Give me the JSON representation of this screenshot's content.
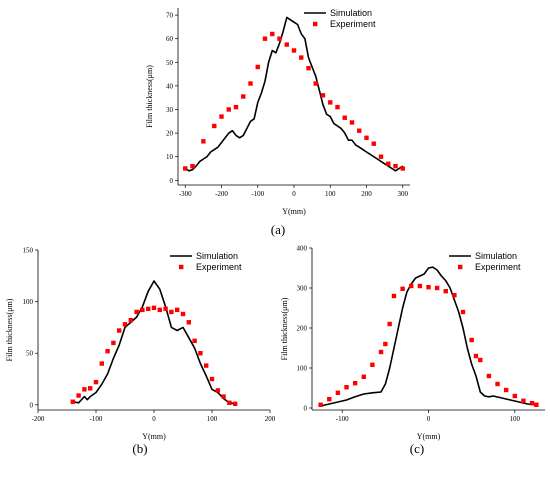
{
  "chart_data": [
    {
      "id": "a",
      "type": "line",
      "caption": "(a)",
      "xlabel": "Y(mm)",
      "ylabel": "Film thickness(μm)",
      "xlim": [
        -320,
        320
      ],
      "ylim": [
        -2,
        73
      ],
      "xticks": [
        -300,
        -200,
        -100,
        0,
        100,
        200,
        300
      ],
      "yticks": [
        0,
        10,
        20,
        30,
        40,
        50,
        60,
        70
      ],
      "legend_position": "top-right",
      "series": [
        {
          "name": "Simulation",
          "kind": "line",
          "color": "#000000",
          "x": [
            -300,
            -290,
            -280,
            -270,
            -260,
            -250,
            -240,
            -230,
            -220,
            -210,
            -200,
            -190,
            -180,
            -170,
            -160,
            -150,
            -140,
            -130,
            -120,
            -110,
            -100,
            -90,
            -80,
            -70,
            -60,
            -50,
            -40,
            -30,
            -20,
            -10,
            0,
            10,
            20,
            30,
            40,
            50,
            60,
            70,
            80,
            90,
            100,
            110,
            120,
            130,
            140,
            150,
            160,
            170,
            180,
            190,
            200,
            210,
            220,
            230,
            240,
            250,
            260,
            270,
            280,
            290,
            300
          ],
          "y": [
            5,
            4,
            4.5,
            6,
            8,
            9,
            10,
            12,
            13,
            14,
            16,
            18,
            20,
            21,
            19,
            18,
            19,
            22,
            25,
            26,
            33,
            37,
            42,
            50,
            55,
            54,
            58,
            63,
            69,
            68,
            67,
            66,
            62,
            60,
            52,
            48,
            44,
            38,
            32,
            28,
            27,
            24,
            23,
            22,
            20,
            17,
            17,
            15,
            14,
            13,
            12,
            11,
            10,
            9,
            8,
            7,
            6,
            5,
            4,
            5,
            6
          ]
        },
        {
          "name": "Experiment",
          "kind": "scatter",
          "color": "#ff0000",
          "x": [
            -300,
            -280,
            -250,
            -220,
            -200,
            -180,
            -160,
            -140,
            -120,
            -100,
            -80,
            -60,
            -40,
            -20,
            0,
            20,
            40,
            60,
            80,
            100,
            120,
            140,
            160,
            180,
            200,
            220,
            240,
            260,
            280,
            300
          ],
          "y": [
            5,
            6,
            16.5,
            23,
            27,
            30,
            31,
            35.5,
            41,
            48,
            60,
            62,
            60,
            57.5,
            55,
            52,
            47.5,
            41,
            36,
            33,
            31,
            26.5,
            24.5,
            21,
            18,
            15.5,
            10,
            7,
            6,
            5
          ]
        }
      ]
    },
    {
      "id": "b",
      "type": "line",
      "caption": "(b)",
      "xlabel": "Y(mm)",
      "ylabel": "Film thickness(μm)",
      "xlim": [
        -200,
        200
      ],
      "ylim": [
        -5,
        150
      ],
      "xticks": [
        -200,
        -100,
        0,
        100,
        200
      ],
      "yticks": [
        0,
        50,
        100,
        150
      ],
      "legend_position": "top-right",
      "series": [
        {
          "name": "Simulation",
          "kind": "line",
          "color": "#000000",
          "x": [
            -140,
            -130,
            -120,
            -115,
            -110,
            -100,
            -90,
            -80,
            -70,
            -60,
            -50,
            -40,
            -30,
            -20,
            -10,
            0,
            10,
            20,
            30,
            40,
            50,
            60,
            70,
            80,
            90,
            100,
            110,
            120,
            130,
            140
          ],
          "y": [
            3,
            2,
            8,
            5,
            8,
            12,
            20,
            30,
            45,
            58,
            75,
            80,
            85,
            95,
            110,
            120,
            112,
            95,
            75,
            72,
            75,
            65,
            55,
            40,
            28,
            15,
            12,
            6,
            2,
            1
          ]
        },
        {
          "name": "Experiment",
          "kind": "scatter",
          "color": "#ff0000",
          "x": [
            -140,
            -130,
            -120,
            -110,
            -100,
            -90,
            -80,
            -70,
            -60,
            -50,
            -40,
            -30,
            -20,
            -10,
            0,
            10,
            20,
            30,
            40,
            50,
            60,
            70,
            80,
            90,
            100,
            110,
            120,
            130,
            140
          ],
          "y": [
            3,
            9,
            15,
            16,
            22,
            40,
            52,
            60,
            72,
            78,
            82,
            90,
            92,
            93,
            94,
            92,
            93,
            90,
            92,
            88,
            80,
            62,
            50,
            38,
            25,
            14,
            8,
            2,
            1
          ]
        }
      ]
    },
    {
      "id": "c",
      "type": "line",
      "caption": "(c)",
      "xlabel": "Y(mm)",
      "ylabel": "Film thickness(μm)",
      "xlim": [
        -135,
        135
      ],
      "ylim": [
        -5,
        400
      ],
      "xticks": [
        -100,
        0,
        100
      ],
      "yticks": [
        0,
        100,
        200,
        300,
        400
      ],
      "legend_position": "top-right",
      "series": [
        {
          "name": "Simulation",
          "kind": "line",
          "color": "#000000",
          "x": [
            -125,
            -115,
            -105,
            -95,
            -85,
            -75,
            -65,
            -55,
            -50,
            -45,
            -40,
            -35,
            -30,
            -25,
            -20,
            -15,
            -10,
            -5,
            0,
            5,
            10,
            15,
            20,
            25,
            30,
            35,
            40,
            45,
            50,
            55,
            60,
            65,
            70,
            75,
            85,
            95,
            105,
            115,
            125
          ],
          "y": [
            5,
            10,
            15,
            20,
            28,
            35,
            38,
            40,
            60,
            100,
            150,
            200,
            250,
            290,
            310,
            325,
            330,
            335,
            350,
            352,
            345,
            330,
            318,
            300,
            270,
            240,
            200,
            150,
            110,
            80,
            40,
            30,
            28,
            30,
            25,
            20,
            15,
            10,
            8
          ]
        },
        {
          "name": "Experiment",
          "kind": "scatter",
          "color": "#ff0000",
          "x": [
            -125,
            -115,
            -105,
            -95,
            -85,
            -75,
            -65,
            -55,
            -50,
            -45,
            -40,
            -30,
            -20,
            -10,
            0,
            10,
            20,
            30,
            40,
            50,
            55,
            60,
            70,
            80,
            90,
            100,
            110,
            120,
            125
          ],
          "y": [
            8,
            22,
            38,
            52,
            62,
            78,
            108,
            140,
            160,
            210,
            280,
            298,
            305,
            305,
            302,
            300,
            292,
            282,
            240,
            170,
            130,
            120,
            80,
            60,
            45,
            30,
            18,
            12,
            8
          ]
        }
      ]
    }
  ]
}
